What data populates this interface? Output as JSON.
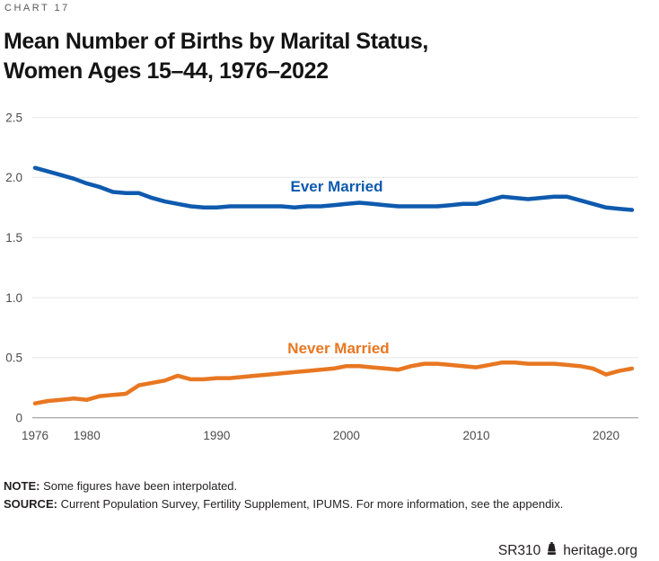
{
  "header": {
    "kicker": "CHART 17",
    "title": "Mean Number of Births by Marital Status,\nWomen Ages 15–44, 1976–2022"
  },
  "chart_data": {
    "type": "line",
    "title": "Mean Number of Births by Marital Status, Women Ages 15–44, 1976–2022",
    "xlabel": "",
    "ylabel": "",
    "ylim": [
      0,
      2.5
    ],
    "grid": "horizontal",
    "legend": "inline-labels",
    "colors": {
      "ever_married": "#0e5aae",
      "never_married": "#e87722",
      "gridline": "#ececec",
      "zero_axis": "#9e9e9e",
      "tick_text": "#4d4d4d"
    },
    "yticks": {
      "values": [
        0,
        0.5,
        1.0,
        1.5,
        2.0,
        2.5
      ],
      "labels": [
        "0",
        "0.5",
        "1.0",
        "1.5",
        "2.0",
        "2.5"
      ]
    },
    "xticks": [
      1976,
      1980,
      1990,
      2000,
      2010,
      2020
    ],
    "x": [
      1976,
      1977,
      1978,
      1979,
      1980,
      1981,
      1982,
      1983,
      1984,
      1985,
      1986,
      1987,
      1988,
      1989,
      1990,
      1991,
      1992,
      1993,
      1994,
      1995,
      1996,
      1997,
      1998,
      1999,
      2000,
      2001,
      2002,
      2003,
      2004,
      2005,
      2006,
      2007,
      2008,
      2009,
      2010,
      2011,
      2012,
      2013,
      2014,
      2015,
      2016,
      2017,
      2018,
      2019,
      2020,
      2021,
      2022
    ],
    "series": [
      {
        "name": "Ever Married",
        "color": "#0e5aae",
        "values": [
          2.08,
          2.05,
          2.02,
          1.99,
          1.95,
          1.92,
          1.88,
          1.87,
          1.87,
          1.83,
          1.8,
          1.78,
          1.76,
          1.75,
          1.75,
          1.76,
          1.76,
          1.76,
          1.76,
          1.76,
          1.75,
          1.76,
          1.76,
          1.77,
          1.78,
          1.79,
          1.78,
          1.77,
          1.76,
          1.76,
          1.76,
          1.76,
          1.77,
          1.78,
          1.78,
          1.81,
          1.84,
          1.83,
          1.82,
          1.83,
          1.84,
          1.84,
          1.81,
          1.78,
          1.75,
          1.74,
          1.73
        ]
      },
      {
        "name": "Never Married",
        "color": "#e87722",
        "values": [
          0.12,
          0.14,
          0.15,
          0.16,
          0.15,
          0.18,
          0.19,
          0.2,
          0.27,
          0.29,
          0.31,
          0.35,
          0.32,
          0.32,
          0.33,
          0.33,
          0.34,
          0.35,
          0.36,
          0.37,
          0.38,
          0.39,
          0.4,
          0.41,
          0.43,
          0.43,
          0.42,
          0.41,
          0.4,
          0.43,
          0.45,
          0.45,
          0.44,
          0.43,
          0.42,
          0.44,
          0.46,
          0.46,
          0.45,
          0.45,
          0.45,
          0.44,
          0.43,
          0.41,
          0.36,
          0.39,
          0.41
        ]
      }
    ]
  },
  "notes": {
    "note_label": "NOTE:",
    "note_text": " Some figures have been interpolated.",
    "source_label": "SOURCE:",
    "source_text": " Current Population Survey, Fertility Supplement, IPUMS. For more information, see the appendix."
  },
  "footer": {
    "report_id": "SR310",
    "site": "heritage.org"
  }
}
